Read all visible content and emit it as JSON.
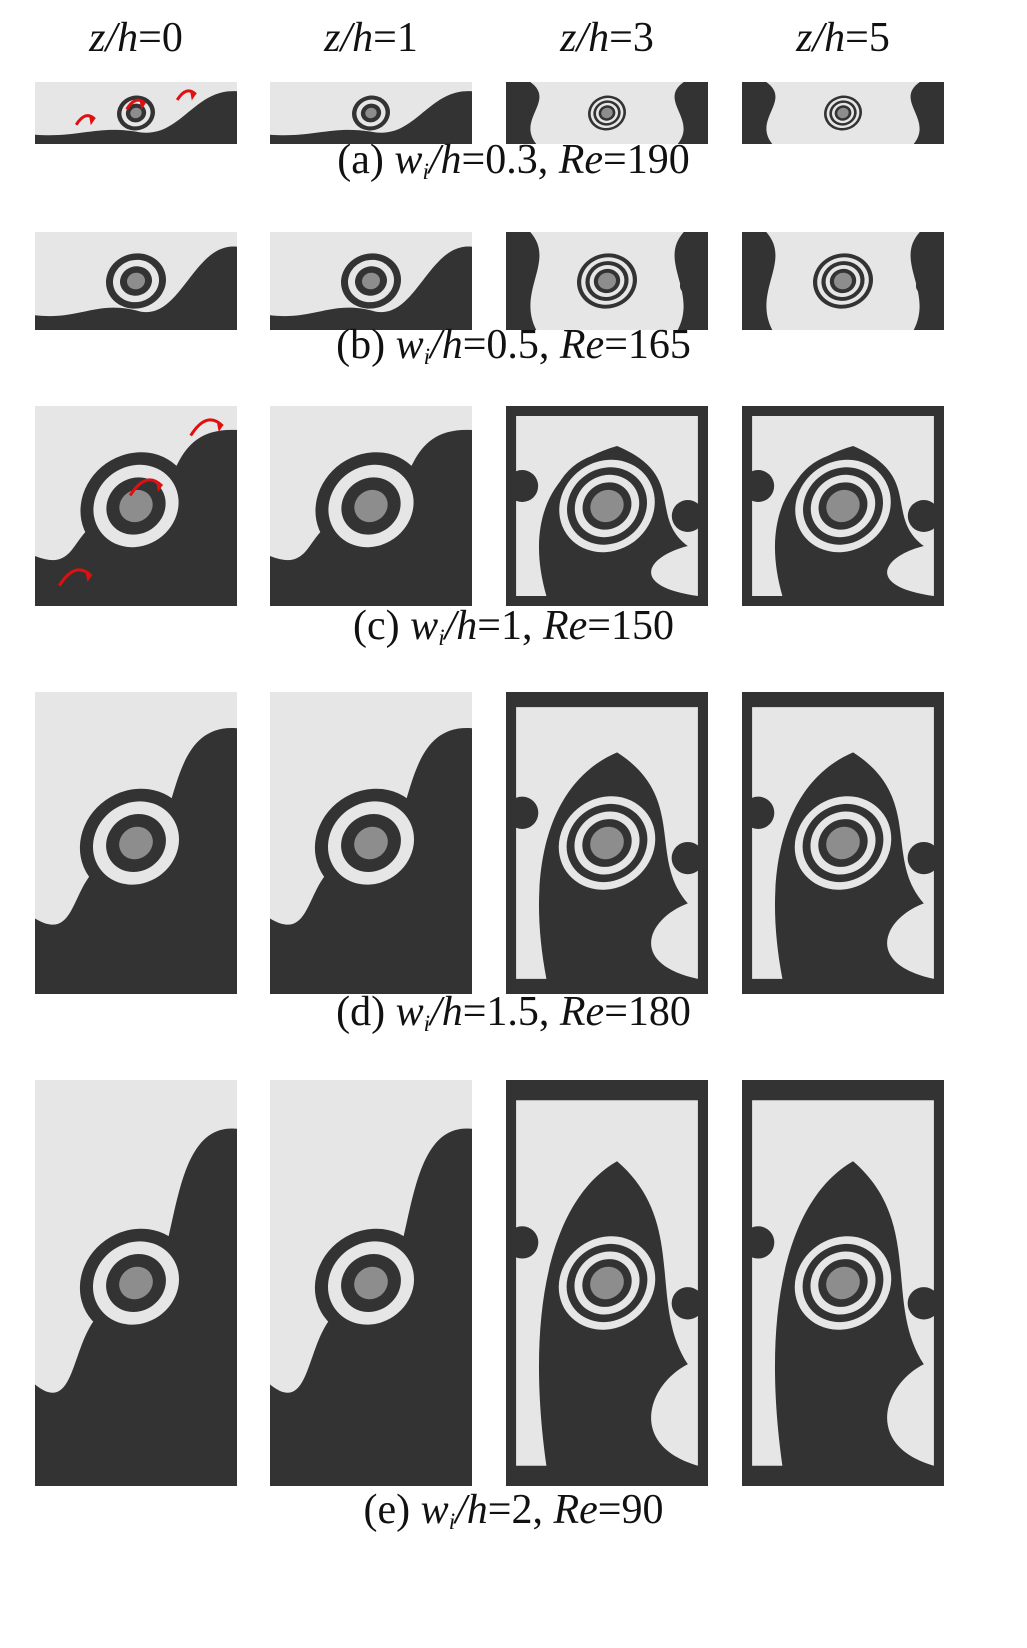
{
  "columns": [
    {
      "var": "z/h",
      "value": "0"
    },
    {
      "var": "z/h",
      "value": "1"
    },
    {
      "var": "z/h",
      "value": "3"
    },
    {
      "var": "z/h",
      "value": "5"
    }
  ],
  "rows": [
    {
      "id": "a",
      "label": "(a)",
      "ratio": "0.3",
      "re": "190",
      "arrows": true
    },
    {
      "id": "b",
      "label": "(b)",
      "ratio": "0.5",
      "re": "165",
      "arrows": false
    },
    {
      "id": "c",
      "label": "(c)",
      "ratio": "1",
      "re": "150",
      "arrows": true
    },
    {
      "id": "d",
      "label": "(d)",
      "ratio": "1.5",
      "re": "180",
      "arrows": false
    },
    {
      "id": "e",
      "label": "(e)",
      "ratio": "2",
      "re": "90",
      "arrows": false
    }
  ],
  "caption_parts": {
    "w": "w",
    "i": "i",
    "h": "/h",
    "eq": "=",
    "sep": ", ",
    "re": "Re"
  },
  "colors": {
    "light": "#e6e6e6",
    "dark": "#333333",
    "core": "#8d8d8d",
    "arrow": "#e01010"
  }
}
